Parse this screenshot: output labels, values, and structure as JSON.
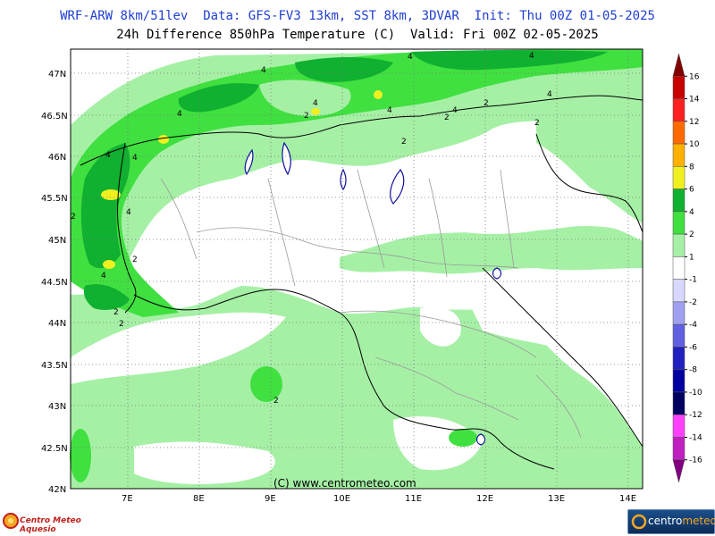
{
  "header": {
    "line1": "WRF-ARW 8km/51lev  Data: GFS-FV3 13km, SST 8km, 3DVAR  Init: Thu 00Z 01-05-2025",
    "line2": "24h Difference 850hPa Temperature (C)  Valid: Fri 00Z 02-05-2025"
  },
  "map": {
    "lat_labels": [
      "47N",
      "46.5N",
      "46N",
      "45.5N",
      "45N",
      "44.5N",
      "44N",
      "43.5N",
      "43N",
      "42.5N",
      "42N"
    ],
    "lon_labels": [
      "7E",
      "8E",
      "9E",
      "10E",
      "11E",
      "12E",
      "13E",
      "14E"
    ],
    "contour_labels": [
      "4",
      "4",
      "4",
      "4",
      "4",
      "4",
      "4",
      "4",
      "4",
      "4",
      "4",
      "4",
      "2",
      "2",
      "2",
      "2",
      "2",
      "2",
      "2",
      "2",
      "2",
      "2"
    ],
    "colors": {
      "land_white": "#ffffff",
      "light_green": "#a6f0a6",
      "mid_green": "#40e040",
      "dark_green": "#10b030",
      "yellow": "#f0f020",
      "lakes": "#1010a0"
    }
  },
  "colorbar": {
    "ticks": [
      "16",
      "14",
      "12",
      "10",
      "8",
      "6",
      "4",
      "2",
      "1",
      "-1",
      "-2",
      "-4",
      "-6",
      "-8",
      "-10",
      "-12",
      "-14",
      "-16"
    ],
    "colors": [
      "#800000",
      "#c80000",
      "#ff2020",
      "#ff6a00",
      "#ffb000",
      "#f0f020",
      "#10b030",
      "#40e040",
      "#a6f0a6",
      "#ffffff",
      "#d8d8ff",
      "#a0a0f0",
      "#6060e0",
      "#2020c0",
      "#0000a0",
      "#000060",
      "#ff40ff",
      "#c020c0",
      "#800080"
    ]
  },
  "footer": {
    "copyright": "(C) www.centrometeo.com",
    "logo_left": "Centro Meteo Aquesio",
    "logo_right_a": "centro",
    "logo_right_b": "meteo"
  }
}
